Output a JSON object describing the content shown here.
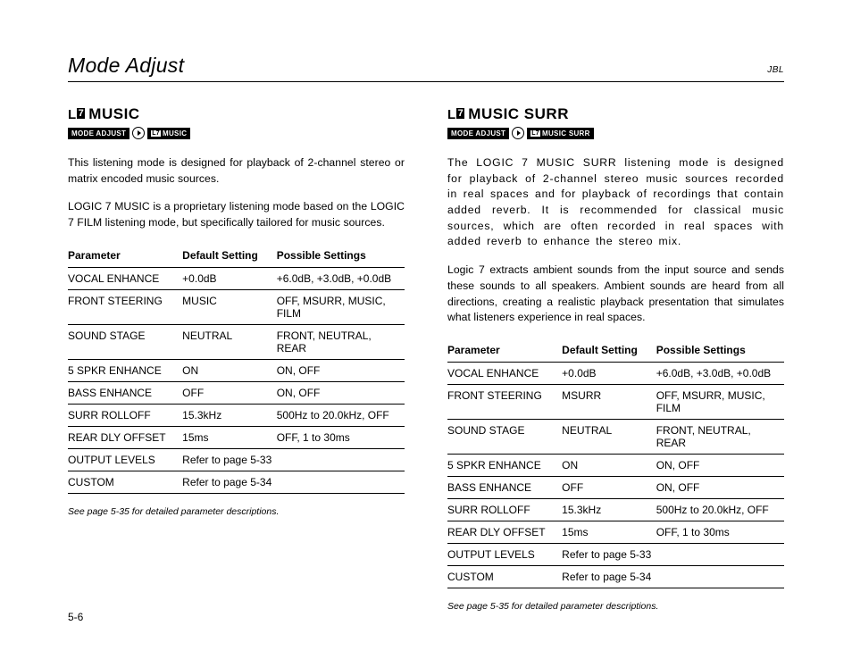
{
  "header": {
    "title": "Mode Adjust",
    "brand": "JBL"
  },
  "page_number": "5-6",
  "footnote": "See page 5-35 for detailed parameter descriptions.",
  "table_headers": {
    "param": "Parameter",
    "default": "Default Setting",
    "possible": "Possible Settings"
  },
  "left": {
    "title": "MUSIC",
    "breadcrumb": {
      "a": "MODE ADJUST",
      "b": "MUSIC"
    },
    "para1": "This listening mode is designed for playback of 2-channel stereo or matrix encoded music sources.",
    "para2": "LOGIC 7 MUSIC is a proprietary listening mode based on the LOGIC 7 FILM listening mode, but specifically tailored for music sources.",
    "rows": [
      {
        "p": "VOCAL ENHANCE",
        "d": "+0.0dB",
        "s": "+6.0dB, +3.0dB, +0.0dB"
      },
      {
        "p": "FRONT STEERING",
        "d": "MUSIC",
        "s": "OFF, MSURR, MUSIC, FILM"
      },
      {
        "p": "SOUND STAGE",
        "d": "NEUTRAL",
        "s": "FRONT, NEUTRAL, REAR"
      },
      {
        "p": "5 SPKR ENHANCE",
        "d": "ON",
        "s": "ON, OFF"
      },
      {
        "p": "BASS ENHANCE",
        "d": "OFF",
        "s": "ON, OFF"
      },
      {
        "p": "SURR ROLLOFF",
        "d": "15.3kHz",
        "s": "500Hz to 20.0kHz, OFF"
      },
      {
        "p": "REAR DLY OFFSET",
        "d": "15ms",
        "s": "OFF, 1 to 30ms"
      },
      {
        "p": "OUTPUT LEVELS",
        "d": "Refer to page 5-33",
        "s": ""
      },
      {
        "p": "CUSTOM",
        "d": "Refer to page 5-34",
        "s": ""
      }
    ]
  },
  "right": {
    "title": "MUSIC SURR",
    "breadcrumb": {
      "a": "MODE ADJUST",
      "b": "MUSIC SURR"
    },
    "para1": "The LOGIC 7 MUSIC SURR listening mode is designed for playback of 2-channel stereo music sources recorded in real spaces and for playback of recordings that contain added reverb. It is recommended for classical music sources, which are often recorded in real spaces with added reverb to enhance the stereo mix.",
    "para2": "Logic 7 extracts ambient sounds from the input source and sends these sounds to all speakers. Ambient sounds are heard from all directions, creating a realistic playback presentation that simulates what listeners experience in real spaces.",
    "rows": [
      {
        "p": "VOCAL ENHANCE",
        "d": "+0.0dB",
        "s": "+6.0dB, +3.0dB, +0.0dB"
      },
      {
        "p": "FRONT STEERING",
        "d": "MSURR",
        "s": "OFF, MSURR, MUSIC, FILM"
      },
      {
        "p": "SOUND STAGE",
        "d": "NEUTRAL",
        "s": "FRONT, NEUTRAL, REAR"
      },
      {
        "p": "5 SPKR ENHANCE",
        "d": "ON",
        "s": "ON, OFF"
      },
      {
        "p": "BASS ENHANCE",
        "d": "OFF",
        "s": "ON, OFF"
      },
      {
        "p": "SURR ROLLOFF",
        "d": "15.3kHz",
        "s": "500Hz to 20.0kHz, OFF"
      },
      {
        "p": "REAR DLY OFFSET",
        "d": "15ms",
        "s": "OFF, 1 to 30ms"
      },
      {
        "p": "OUTPUT LEVELS",
        "d": "Refer to page 5-33",
        "s": ""
      },
      {
        "p": "CUSTOM",
        "d": "Refer to page 5-34",
        "s": ""
      }
    ]
  }
}
